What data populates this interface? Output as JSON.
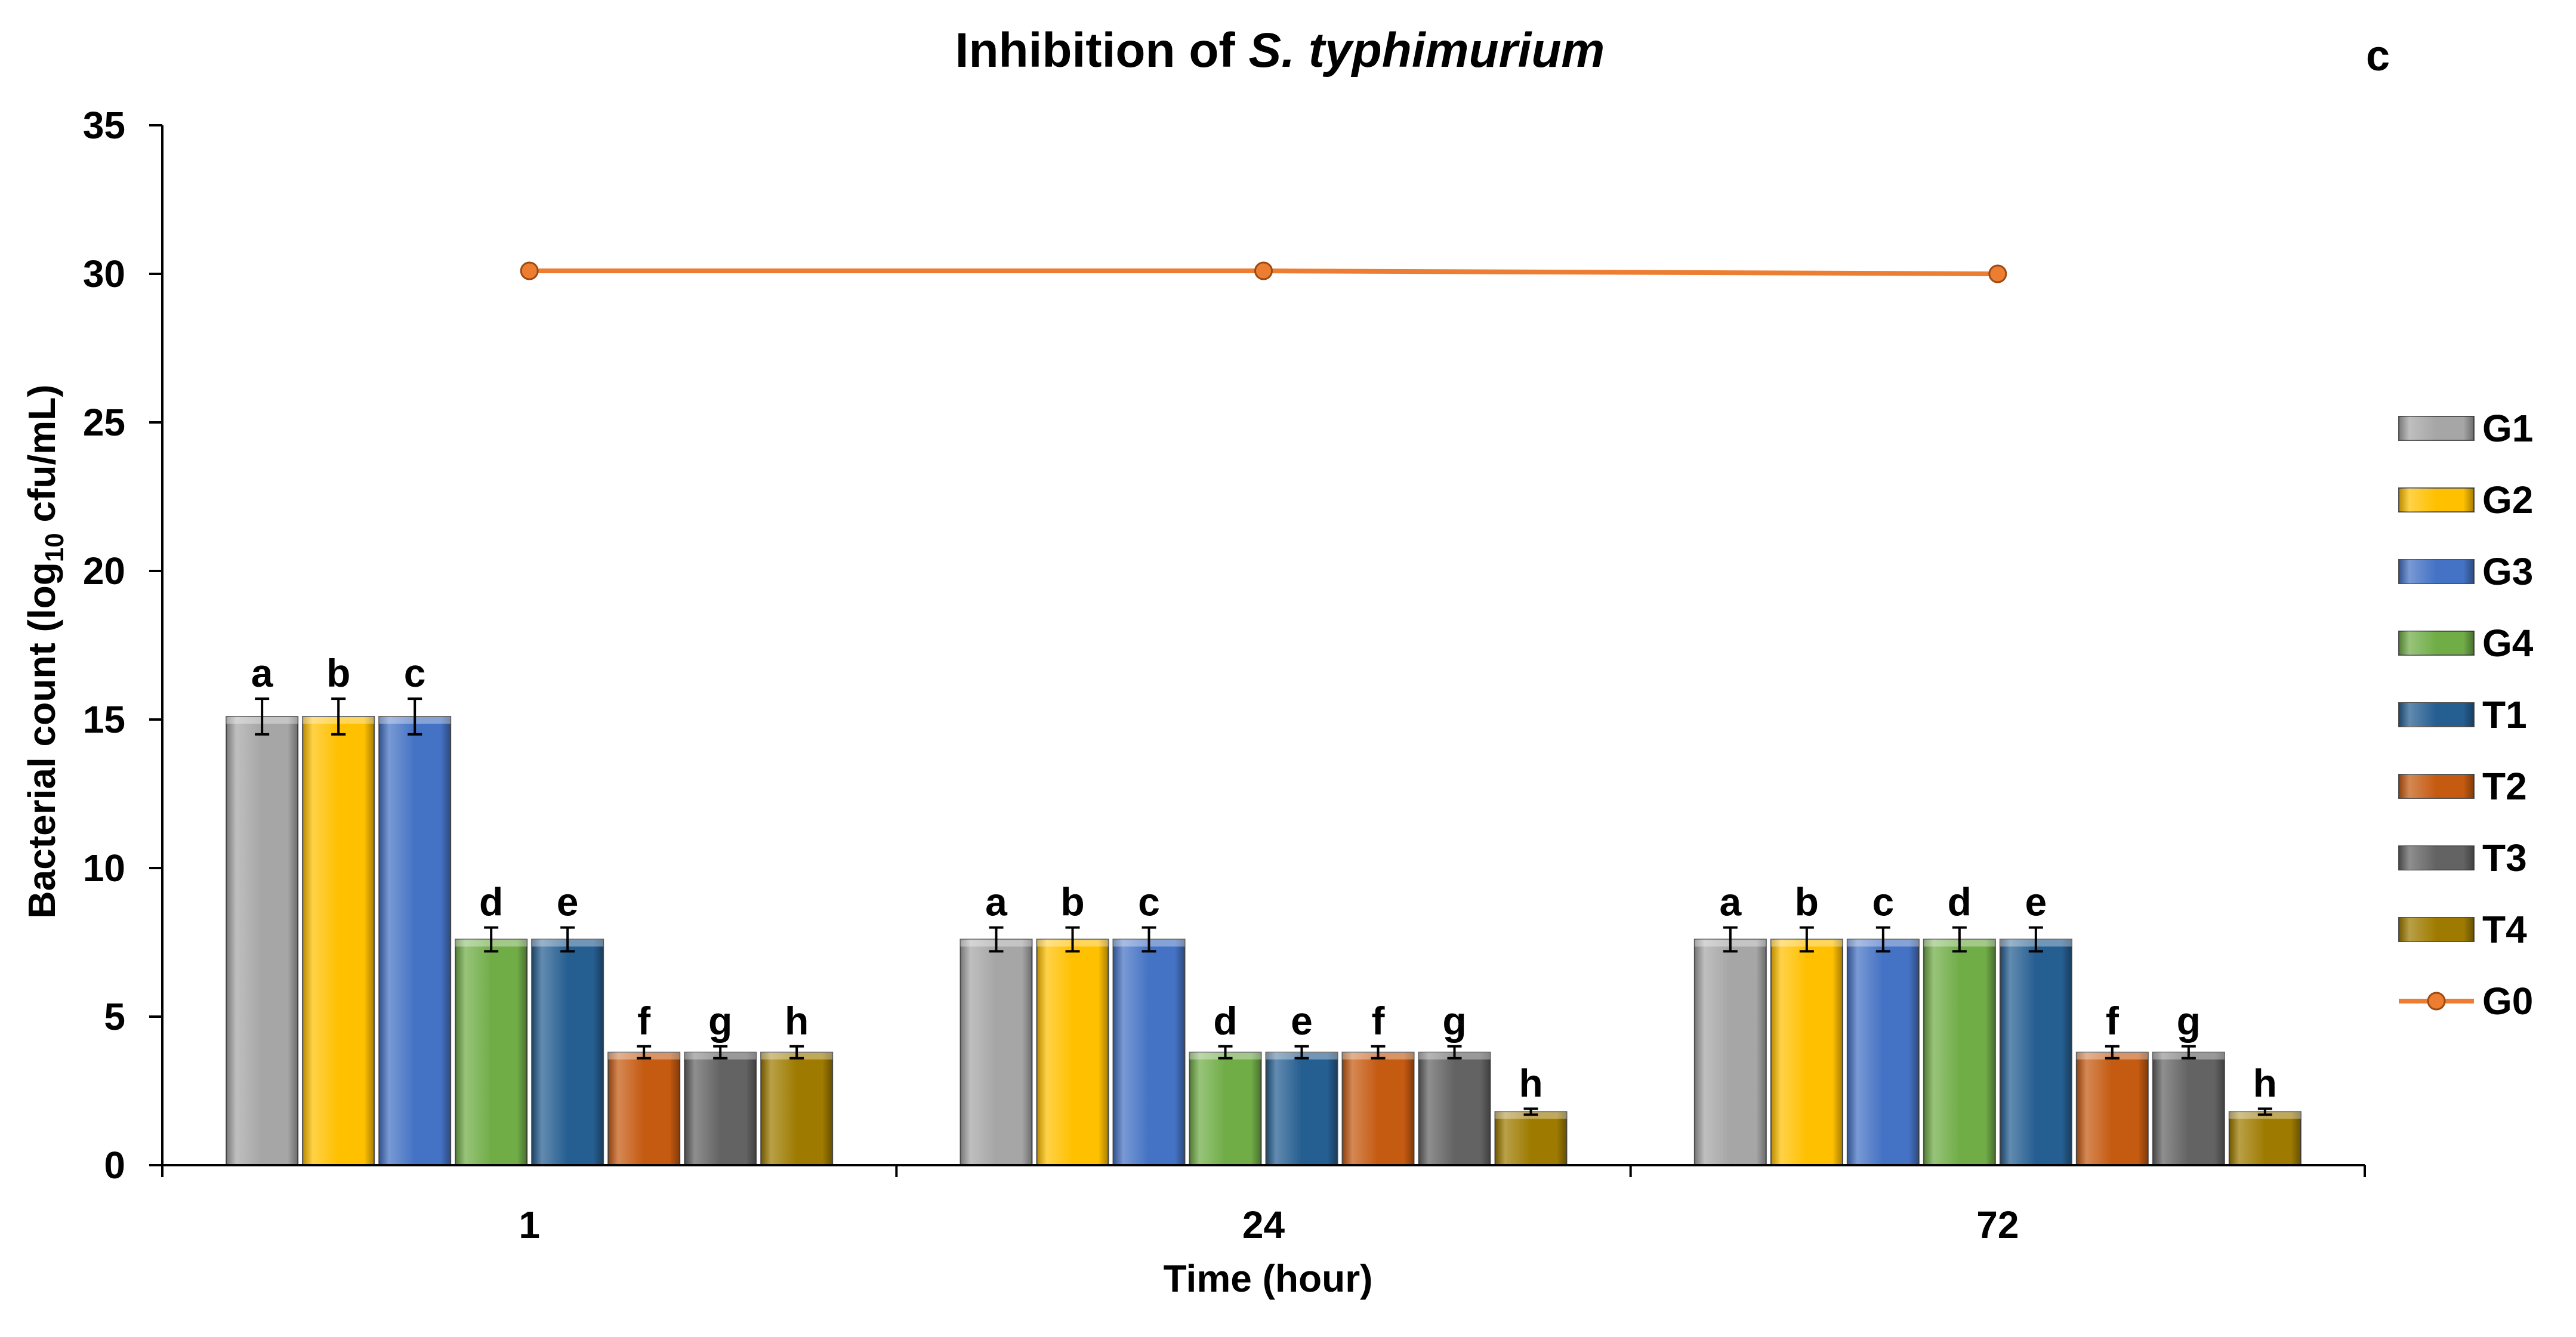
{
  "chart_data": {
    "type": "bar",
    "title_prefix": "Inhibition of ",
    "title_italic": "S. typhimurium",
    "panel_label": "c",
    "xlabel": "Time (hour)",
    "ylabel_main": "Bacterial count (log",
    "ylabel_sub": "10",
    "ylabel_tail": " cfu/mL)",
    "ylim": [
      0,
      35
    ],
    "yticks": [
      0,
      5,
      10,
      15,
      20,
      25,
      30,
      35
    ],
    "ytick_labels": [
      "0",
      "5",
      "10",
      "15",
      "20",
      "25",
      "30",
      "35"
    ],
    "categories": [
      "1",
      "24",
      "72"
    ],
    "series": [
      {
        "name": "G1",
        "color": "#a6a6a6",
        "values": [
          15.1,
          7.6,
          7.6
        ],
        "errors": [
          0.6,
          0.4,
          0.4
        ],
        "letters": [
          "a",
          "a",
          "a"
        ]
      },
      {
        "name": "G2",
        "color": "#ffc000",
        "values": [
          15.1,
          7.6,
          7.6
        ],
        "errors": [
          0.6,
          0.4,
          0.4
        ],
        "letters": [
          "b",
          "b",
          "b"
        ]
      },
      {
        "name": "G3",
        "color": "#4472c4",
        "values": [
          15.1,
          7.6,
          7.6
        ],
        "errors": [
          0.6,
          0.4,
          0.4
        ],
        "letters": [
          "c",
          "c",
          "c"
        ]
      },
      {
        "name": "G4",
        "color": "#70ad47",
        "values": [
          7.6,
          3.8,
          7.6
        ],
        "errors": [
          0.4,
          0.2,
          0.4
        ],
        "letters": [
          "d",
          "d",
          "d"
        ]
      },
      {
        "name": "T1",
        "color": "#255e91",
        "values": [
          7.6,
          3.8,
          7.6
        ],
        "errors": [
          0.4,
          0.2,
          0.4
        ],
        "letters": [
          "e",
          "e",
          "e"
        ]
      },
      {
        "name": "T2",
        "color": "#c55a11",
        "values": [
          3.8,
          3.8,
          3.8
        ],
        "errors": [
          0.2,
          0.2,
          0.2
        ],
        "letters": [
          "f",
          "f",
          "f"
        ]
      },
      {
        "name": "T3",
        "color": "#636363",
        "values": [
          3.8,
          3.8,
          3.8
        ],
        "errors": [
          0.2,
          0.2,
          0.2
        ],
        "letters": [
          "g",
          "g",
          "g"
        ]
      },
      {
        "name": "T4",
        "color": "#9e7b00",
        "values": [
          3.8,
          1.8,
          1.8
        ],
        "errors": [
          0.2,
          0.1,
          0.1
        ],
        "letters": [
          "h",
          "h",
          "h"
        ]
      }
    ],
    "line_series": {
      "name": "G0",
      "color": "#ed7d31",
      "values": [
        30.1,
        30.1,
        30.0
      ]
    },
    "legend_position": "right"
  }
}
